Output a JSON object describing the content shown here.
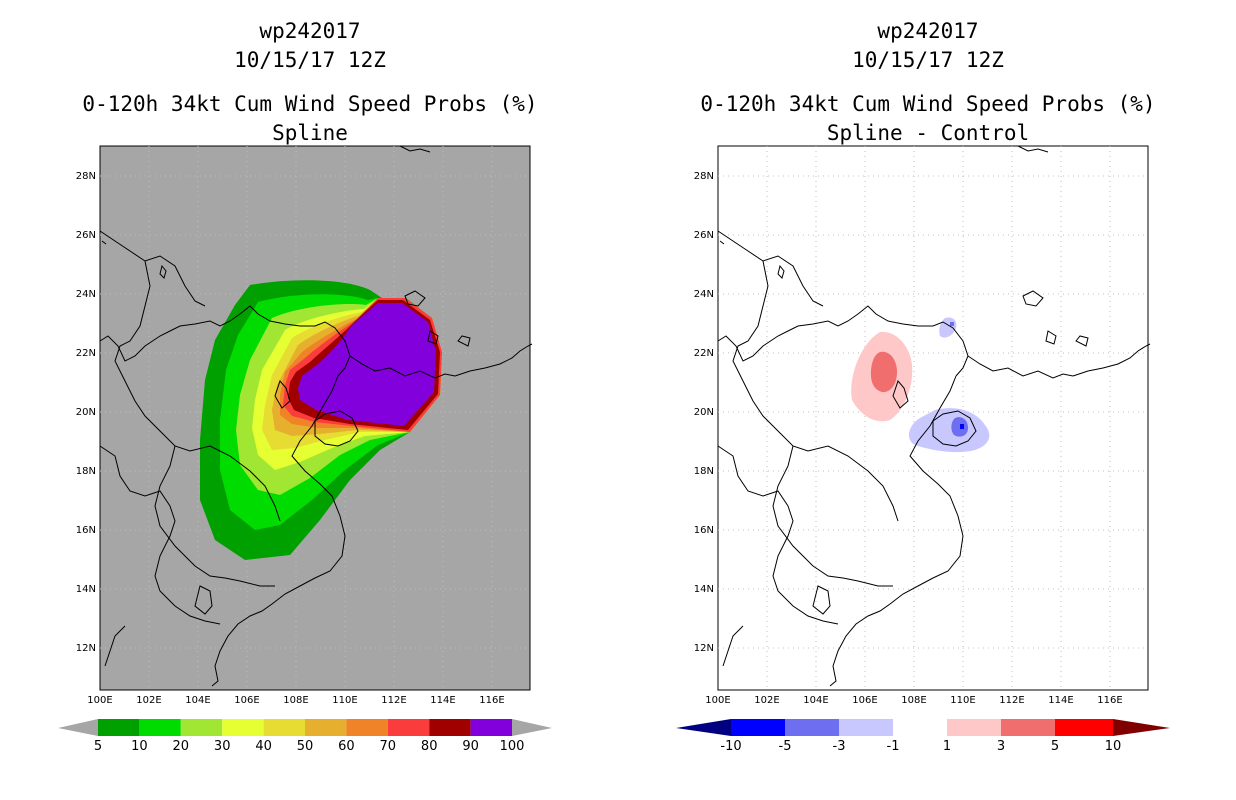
{
  "panels": [
    {
      "id": "left",
      "header_line1": "wp242017",
      "header_line2": "10/15/17 12Z",
      "title": "0-120h 34kt Cum Wind Speed Probs (%)",
      "subtitle": "Spline",
      "lat_labels": [
        "28N",
        "26N",
        "24N",
        "22N",
        "20N",
        "18N",
        "16N",
        "14N",
        "12N"
      ],
      "lon_labels": [
        "100E",
        "102E",
        "104E",
        "106E",
        "108E",
        "110E",
        "112E",
        "114E",
        "116E"
      ],
      "colorbar": {
        "colors": [
          "#00a000",
          "#00dc00",
          "#a0e632",
          "#e6ff32",
          "#e6dc32",
          "#e6af2d",
          "#f08228",
          "#fa3c3c",
          "#a00000",
          "#8200dc"
        ],
        "labels": [
          "5",
          "10",
          "20",
          "30",
          "40",
          "50",
          "60",
          "70",
          "80",
          "90",
          "100"
        ],
        "below_color": "#a6a6a6",
        "above_color": "#a6a6a6"
      }
    },
    {
      "id": "right",
      "header_line1": "wp242017",
      "header_line2": "10/15/17 12Z",
      "title": "0-120h 34kt Cum Wind Speed Probs (%)",
      "subtitle": "Spline - Control",
      "lat_labels": [
        "28N",
        "26N",
        "24N",
        "22N",
        "20N",
        "18N",
        "16N",
        "14N",
        "12N"
      ],
      "lon_labels": [
        "100E",
        "102E",
        "104E",
        "106E",
        "108E",
        "110E",
        "112E",
        "114E",
        "116E"
      ],
      "colorbar": {
        "colors": [
          "#0000ff",
          "#6e6ef0",
          "#c8c8ff",
          "#ffffff",
          "#ffc8c8",
          "#f06e6e",
          "#ff0000"
        ],
        "labels": [
          "-10",
          "-5",
          "-3",
          "-1",
          "1",
          "3",
          "5",
          "10"
        ],
        "below_color": "#000080",
        "above_color": "#800000"
      }
    }
  ],
  "map_colors": {
    "plot_background_left": "#a6a6a6",
    "plot_background_right": "#ffffff",
    "coastline": "#000000",
    "grid": "#bfbfbf"
  }
}
